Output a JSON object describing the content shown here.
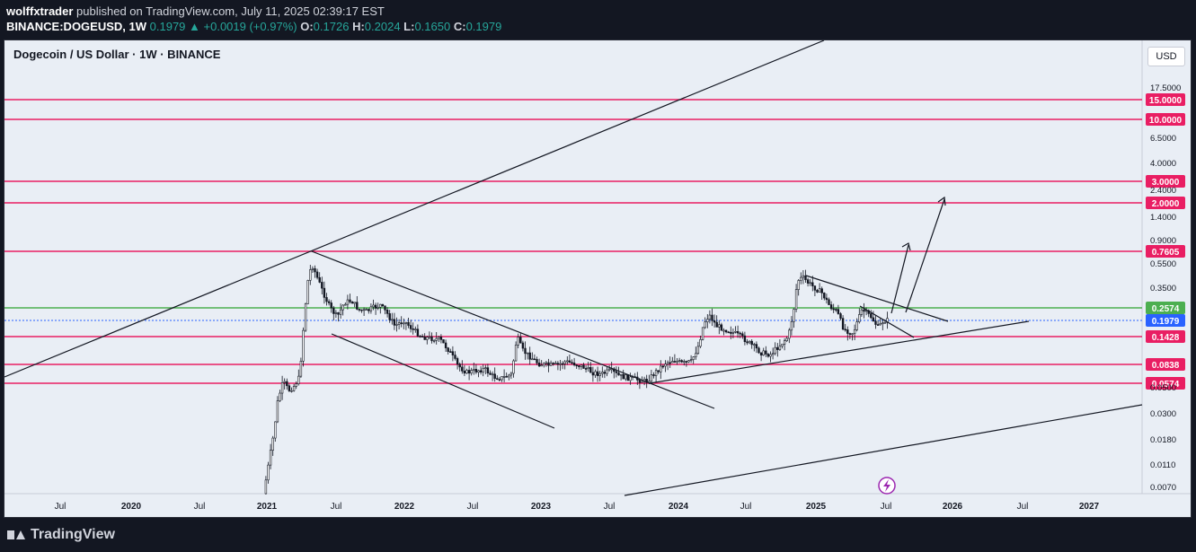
{
  "header": {
    "author": "wolffxtrader",
    "published_text": "published on TradingView.com, July 11, 2025 02:39:17 EST",
    "symbol": "BINANCE:DOGEUSD, 1W",
    "price": "0.1979",
    "change": "▲ +0.0019 (+0.97%)",
    "o_label": "O:",
    "o_val": "0.1726",
    "h_label": "H:",
    "h_val": "0.2024",
    "l_label": "L:",
    "l_val": "0.1650",
    "c_label": "C:",
    "c_val": "0.1979"
  },
  "chart": {
    "title": "Dogecoin / US Dollar · 1W · BINANCE",
    "currency_button": "USD",
    "scale": "log",
    "price_axis_ticks": [
      "17.5000",
      "6.5000",
      "4.0000",
      "2.4000",
      "1.4000",
      "0.9000",
      "0.5500",
      "0.3500",
      "0.0500",
      "0.0300",
      "0.0180",
      "0.0110",
      "0.0070"
    ],
    "time_axis_ticks": [
      "Jul",
      "2020",
      "Jul",
      "2021",
      "Jul",
      "2022",
      "Jul",
      "2023",
      "Jul",
      "2024",
      "Jul",
      "2025",
      "Jul",
      "2026",
      "Jul",
      "2027"
    ],
    "horizontal_levels": [
      {
        "label": "15.0000",
        "color": "#e91e63"
      },
      {
        "label": "10.0000",
        "color": "#e91e63"
      },
      {
        "label": "3.0000",
        "color": "#e91e63"
      },
      {
        "label": "2.0000",
        "color": "#e91e63"
      },
      {
        "label": "0.7605",
        "color": "#e91e63"
      },
      {
        "label": "0.2574",
        "color": "#4caf50"
      },
      {
        "label": "0.1979",
        "color": "#2962ff"
      },
      {
        "label": "0.1428",
        "color": "#e91e63"
      },
      {
        "label": "0.0838",
        "color": "#e91e63"
      },
      {
        "label": "0.0574",
        "color": "#e91e63"
      }
    ],
    "colors": {
      "background": "#e9eef5",
      "level_line": "#e91e63",
      "support": "#4caf50",
      "last_price": "#2962ff",
      "candles": "#131722"
    }
  },
  "footer": {
    "brand": "TradingView"
  }
}
